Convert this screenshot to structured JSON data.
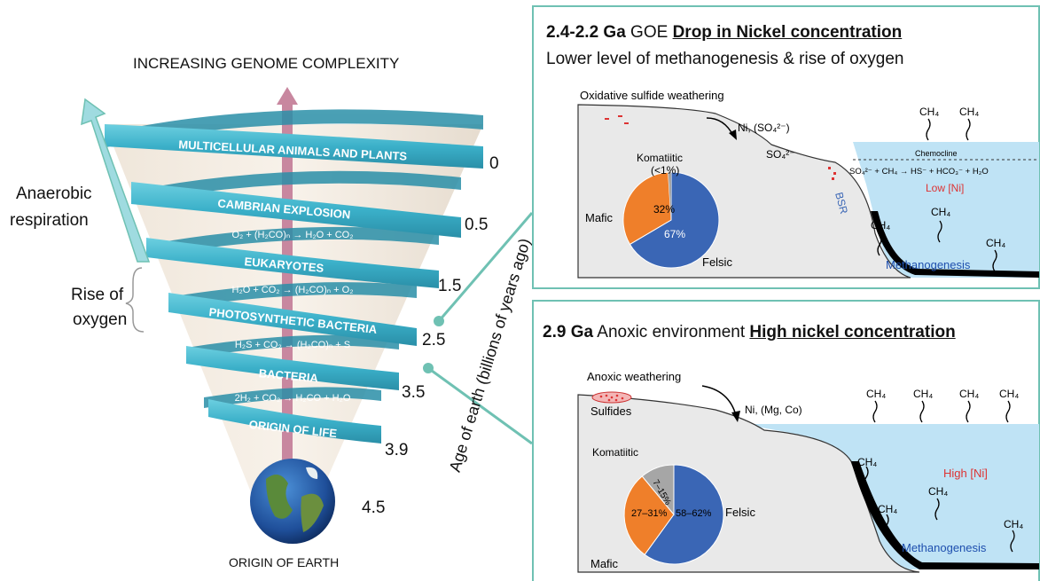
{
  "spiral": {
    "top_label": "INCREASING GENOME COMPLEXITY",
    "bottom_label": "ORIGIN OF EARTH",
    "bands": [
      "MULTICELLULAR ANIMALS AND PLANTS",
      "CAMBRIAN EXPLOSION",
      "EUKARYOTES",
      "PHOTOSYNTHETIC BACTERIA",
      "BACTERIA",
      "ORIGIN OF LIFE"
    ],
    "equations": [
      "O₂ + (H₂CO)ₙ → H₂O + CO₂",
      "H₂O + CO₂ → (H₂CO)ₙ + O₂",
      "H₂S + CO₂ → (H₂CO)ₙ + S",
      "2H₂ + CO₂ → H₂CO + H₂O"
    ],
    "ages": [
      "0",
      "0.5",
      "1.5",
      "2.5",
      "3.5",
      "3.9",
      "4.5"
    ],
    "axis_title": "Age of earth (billions of years ago)",
    "left_labels": {
      "anaerobic": [
        "Anaerobic",
        "respiration"
      ],
      "oxygen": [
        "Rise of",
        "oxygen"
      ]
    }
  },
  "panel_top": {
    "title_bold": "2.4-2.2 Ga",
    "title_plain": " GOE ",
    "title_underlined": "Drop in Nickel concentration",
    "subtitle": "Lower level of methanogenesis & rise of oxygen",
    "weathering": "Oxidative sulfide weathering",
    "ni_label": "Ni, (SO₄²⁻)",
    "so4_label": "SO₄²⁻",
    "chemocline": "Chemocline",
    "reaction": "SO₄²⁻ + CH₄ → HS⁻ + HCO₃⁻ + H₂O",
    "low_ni": "Low [Ni]",
    "bsr": "BSR",
    "methanogenesis": "Methanogenesis",
    "ch4": "CH₄",
    "pie_labels": {
      "komatiitic": "Komatiitic",
      "komatiitic_value": "(<1%)",
      "mafic": "Mafic",
      "felsic": "Felsic",
      "mafic_value": "32%",
      "felsic_value": "67%"
    },
    "colors": {
      "felsic": "#3a66b5",
      "mafic": "#ef7f2a",
      "komatiitic": "#a6a6a6"
    }
  },
  "panel_bottom": {
    "title_bold": "2.9 Ga",
    "title_plain": " Anoxic environment ",
    "title_underlined": "High nickel concentration",
    "weathering": "Anoxic weathering",
    "sulfides": "Sulfides",
    "ni_label": "Ni, (Mg, Co)",
    "high_ni": "High [Ni]",
    "methanogenesis": "Methanogenesis",
    "ch4": "CH₄",
    "pie_labels": {
      "komatiitic": "Komatiitic",
      "mafic": "Mafic",
      "felsic": "Felsic",
      "komatiitic_value": "7–15%",
      "mafic_value": "27–31%",
      "felsic_value": "58–62%"
    }
  },
  "colors": {
    "accent": "#6fc1b3",
    "band": "#3bb0c9",
    "band_dark": "#2a8fa8",
    "water": "#bfe3f5",
    "land": "#e9e9e9"
  }
}
